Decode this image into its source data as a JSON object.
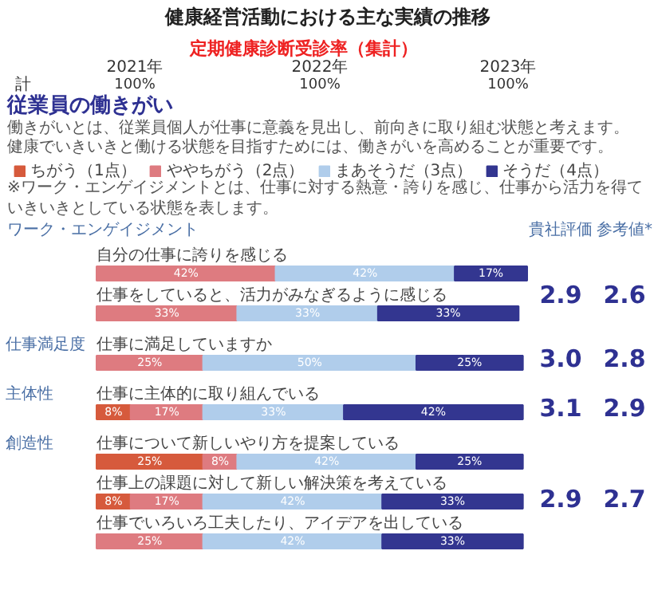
{
  "chart_data": {
    "type": "bar",
    "orientation": "horizontal",
    "stacked": true,
    "legend": "top",
    "title": "健康経営活動における主な実績の推移",
    "subtitle": "従業員の働きがい",
    "categories": [
      "自分の仕事に誇りを感じる",
      "仕事をしていると、活力がみなぎるように感じる",
      "仕事に満足していますか",
      "仕事に主体的に取り組んでいる",
      "仕事について新しいやり方を提案している",
      "仕事上の課題に対して新しい解決策を考えている",
      "仕事でいろいろ工夫したり、アイデアを出している"
    ],
    "series": [
      {
        "name": "ちがう（1点）",
        "color": "#d65a3c",
        "values": [
          null,
          null,
          null,
          8,
          25,
          8,
          null
        ],
        "value_labels": [
          null,
          null,
          null,
          "8%",
          "25%",
          "8%",
          null
        ]
      },
      {
        "name": "ややちがう（2点）",
        "color": "#de7b80",
        "values": [
          42,
          33,
          25,
          17,
          8,
          17,
          25
        ],
        "value_labels": [
          "42%",
          "33%",
          "25%",
          "17%",
          "8%",
          "17%",
          "25%"
        ]
      },
      {
        "name": "まあそうだ（3点）",
        "color": "#b0cdeb",
        "values": [
          42,
          33,
          50,
          33,
          42,
          42,
          42
        ],
        "value_labels": [
          "42%",
          "33%",
          "50%",
          "33%",
          "42%",
          "42%",
          "42%"
        ]
      },
      {
        "name": "そうだ（4点）",
        "color": "#333690",
        "values": [
          17,
          33,
          25,
          42,
          25,
          33,
          33
        ],
        "value_labels": [
          "17%",
          "33%",
          "25%",
          "42%",
          "25%",
          "33%",
          "33%"
        ]
      }
    ],
    "annotations": [
      "定期健康診断受診率（集計）",
      "2021年",
      "2022年",
      "2023年",
      "計",
      "100%",
      "100%",
      "100%",
      "働きがいとは、従業員個人が仕事に意義を見出し、前向きに取り組む状態と考えます。",
      "健康でいきいきと働ける状態を目指すためには、働きがいを高めることが重要です。",
      "ワーク・エンゲイジメント",
      "※ワーク・エンゲイジメントとは、仕事に対する熱意・誇りを感じ、仕事から活力を得ていきいきとしている状態を表します。",
      "貴社評価",
      "参考値*",
      "仕事満足度",
      "主体性",
      "創造性",
      "2.9",
      "2.6",
      "3.0",
      "2.8",
      "3.1",
      "2.9",
      "2.9",
      "2.7"
    ]
  }
}
